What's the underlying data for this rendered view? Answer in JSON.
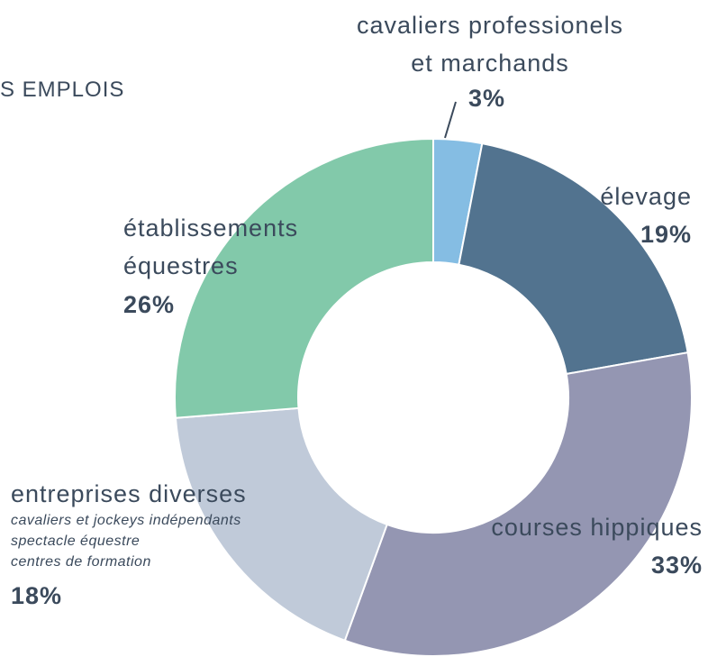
{
  "chart_data": {
    "type": "donut",
    "title": "S EMPLOIS",
    "categories": [
      "cavaliers professionels\net marchands",
      "élevage",
      "courses hippiques",
      "entreprises diverses",
      "établissements\néquestres"
    ],
    "values": [
      3,
      19,
      33,
      18,
      26
    ],
    "value_labels": [
      "3%",
      "19%",
      "33%",
      "18%",
      "26%"
    ],
    "colors": [
      "#85bde3",
      "#52738f",
      "#9496b2",
      "#c0cad9",
      "#82c9aa"
    ],
    "annotations": [
      {
        "category": "entreprises diverses",
        "text": "cavaliers et jockeys indépendants\nspectacle équestre\ncentres de formation"
      }
    ]
  }
}
